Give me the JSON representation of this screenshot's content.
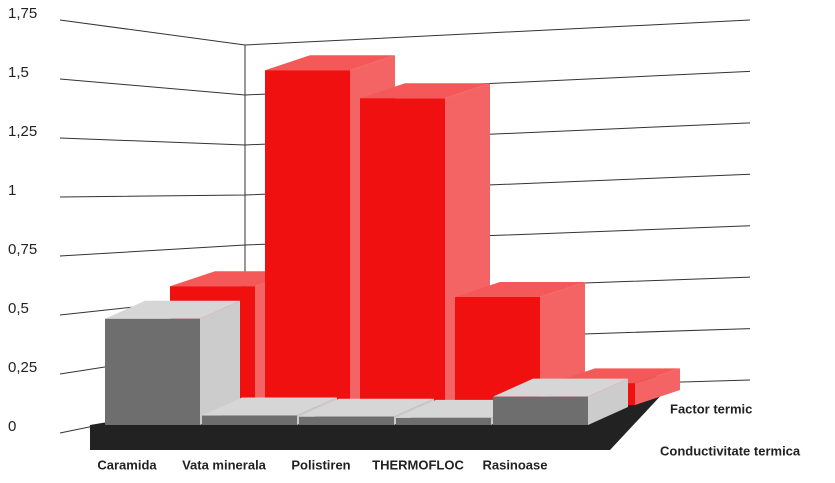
{
  "chart_data": {
    "type": "bar3d",
    "categories": [
      "Caramida",
      "Vata minerala",
      "Polistiren",
      "THERMOFLOC",
      "Rasinoase"
    ],
    "series": [
      {
        "name": "Factor termic",
        "color": "#f01010",
        "values": [
          0.55,
          1.55,
          1.42,
          0.5,
          0.1
        ]
      },
      {
        "name": "Conductivitate termica",
        "color": "#6e6e6e",
        "values": [
          0.45,
          0.04,
          0.035,
          0.03,
          0.12
        ]
      }
    ],
    "ylim": [
      0,
      1.75
    ],
    "yticks": [
      0,
      {
        "value": 0.25,
        "label": "0,25"
      },
      {
        "value": 0.5,
        "label": "0,5"
      },
      {
        "value": 0.75,
        "label": "0,75"
      },
      1,
      {
        "value": 1.25,
        "label": "1,25"
      },
      {
        "value": 1.5,
        "label": "1,5"
      },
      {
        "value": 1.75,
        "label": "1,75"
      }
    ],
    "grid": true
  }
}
